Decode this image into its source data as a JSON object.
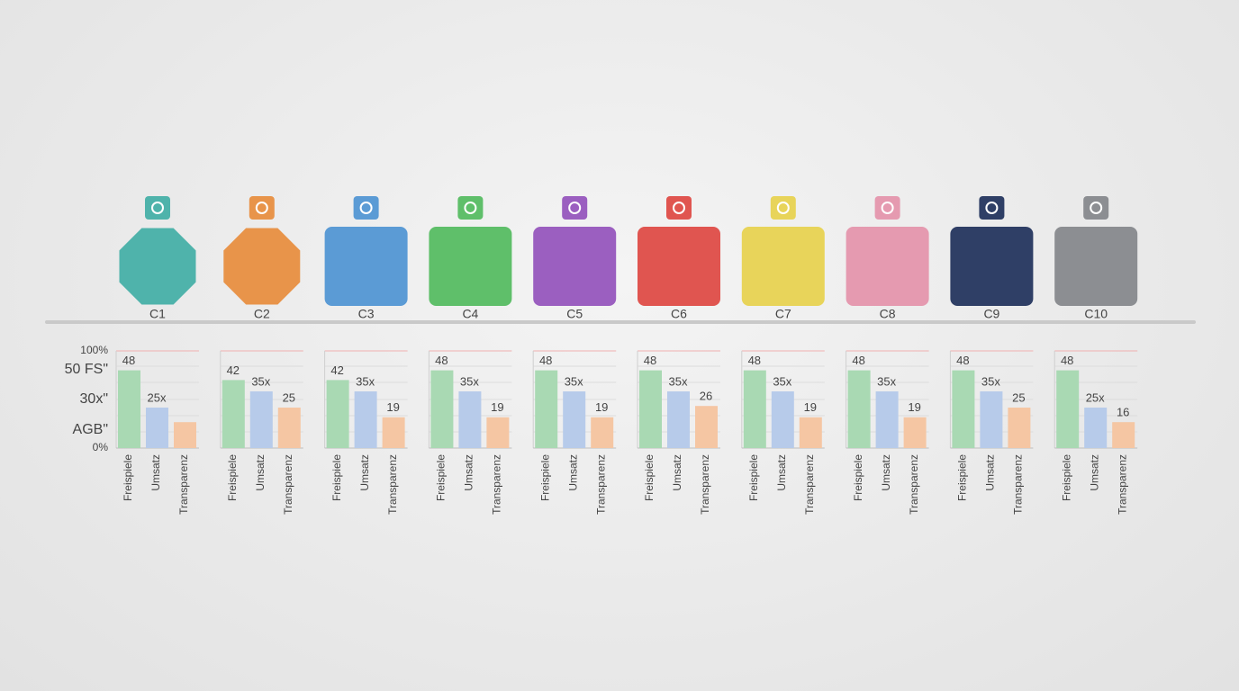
{
  "axis_labels": [
    "100%",
    "50 FS\"",
    "30x\"",
    "AGB\"",
    "0%"
  ],
  "chart_data": [
    {
      "type": "bar",
      "title": "C1",
      "shape": "octagon",
      "color": "#4fb3ab",
      "categories": [
        "Freispiele",
        "Umsatz",
        "Transparenz"
      ],
      "values": [
        48,
        25,
        16
      ],
      "value_labels": [
        "48",
        "25x",
        null
      ],
      "colors": [
        "#a9d9b3",
        "#b7cbea",
        "#f5c6a3"
      ],
      "ylim": [
        0,
        60
      ]
    },
    {
      "type": "bar",
      "title": "C2",
      "shape": "octagon",
      "color": "#e8944a",
      "categories": [
        "Freispiele",
        "Umsatz",
        "Transparenz"
      ],
      "values": [
        42,
        35,
        25
      ],
      "value_labels": [
        "42",
        "35x",
        "25"
      ],
      "colors": [
        "#a9d9b3",
        "#b7cbea",
        "#f5c6a3"
      ],
      "ylim": [
        0,
        60
      ]
    },
    {
      "type": "bar",
      "title": "C3",
      "shape": "square",
      "color": "#5b9bd5",
      "categories": [
        "Freispiele",
        "Umsatz",
        "Transparenz"
      ],
      "values": [
        42,
        35,
        19
      ],
      "value_labels": [
        "42",
        "35x",
        "19"
      ],
      "colors": [
        "#a9d9b3",
        "#b7cbea",
        "#f5c6a3"
      ],
      "ylim": [
        0,
        60
      ]
    },
    {
      "type": "bar",
      "title": "C4",
      "shape": "square",
      "color": "#5fbf6a",
      "categories": [
        "Freispiele",
        "Umsatz",
        "Transparenz"
      ],
      "values": [
        48,
        35,
        19
      ],
      "value_labels": [
        "48",
        "35x",
        "19"
      ],
      "colors": [
        "#a9d9b3",
        "#b7cbea",
        "#f5c6a3"
      ],
      "ylim": [
        0,
        60
      ]
    },
    {
      "type": "bar",
      "title": "C5",
      "shape": "square",
      "color": "#9b5fc0",
      "categories": [
        "Freispiele",
        "Umsatz",
        "Transparenz"
      ],
      "values": [
        48,
        35,
        19
      ],
      "value_labels": [
        "48",
        "35x",
        "19"
      ],
      "colors": [
        "#a9d9b3",
        "#b7cbea",
        "#f5c6a3"
      ],
      "ylim": [
        0,
        60
      ]
    },
    {
      "type": "bar",
      "title": "C6",
      "shape": "square",
      "color": "#e05550",
      "categories": [
        "Freispiele",
        "Umsatz",
        "Transparenz"
      ],
      "values": [
        48,
        35,
        26
      ],
      "value_labels": [
        "48",
        "35x",
        "26"
      ],
      "colors": [
        "#a9d9b3",
        "#b7cbea",
        "#f5c6a3"
      ],
      "ylim": [
        0,
        60
      ]
    },
    {
      "type": "bar",
      "title": "C7",
      "shape": "square",
      "color": "#e8d45a",
      "categories": [
        "Freispiele",
        "Umsatz",
        "Transparenz"
      ],
      "values": [
        48,
        35,
        19
      ],
      "value_labels": [
        "48",
        "35x",
        "19"
      ],
      "colors": [
        "#a9d9b3",
        "#b7cbea",
        "#f5c6a3"
      ],
      "ylim": [
        0,
        60
      ]
    },
    {
      "type": "bar",
      "title": "C8",
      "shape": "square",
      "color": "#e59ab0",
      "categories": [
        "Freispiele",
        "Umsatz",
        "Transparenz"
      ],
      "values": [
        48,
        35,
        19
      ],
      "value_labels": [
        "48",
        "35x",
        "19"
      ],
      "colors": [
        "#a9d9b3",
        "#b7cbea",
        "#f5c6a3"
      ],
      "ylim": [
        0,
        60
      ]
    },
    {
      "type": "bar",
      "title": "C9",
      "shape": "square",
      "color": "#2f3f66",
      "categories": [
        "Freispiele",
        "Umsatz",
        "Transparenz"
      ],
      "values": [
        48,
        35,
        25
      ],
      "value_labels": [
        "48",
        "35x",
        "25"
      ],
      "colors": [
        "#a9d9b3",
        "#b7cbea",
        "#f5c6a3"
      ],
      "ylim": [
        0,
        60
      ]
    },
    {
      "type": "bar",
      "title": "C10",
      "shape": "square",
      "color": "#8c8e92",
      "categories": [
        "Freispiele",
        "Umsatz",
        "Transparenz"
      ],
      "values": [
        48,
        25,
        16
      ],
      "value_labels": [
        "48",
        "25x",
        "16"
      ],
      "colors": [
        "#a9d9b3",
        "#b7cbea",
        "#f5c6a3"
      ],
      "ylim": [
        0,
        60
      ]
    }
  ]
}
